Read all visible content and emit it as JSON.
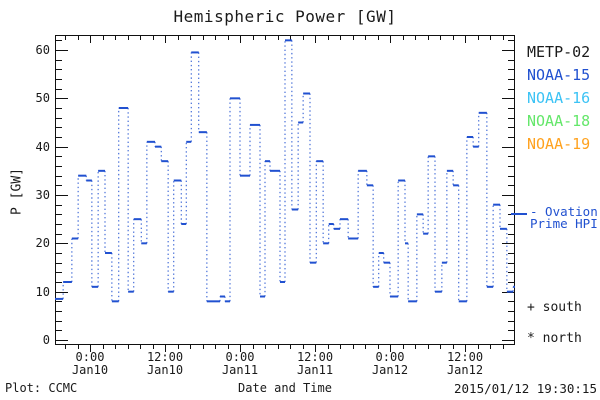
{
  "title": "Hemispheric Power [GW]",
  "legend": {
    "satellites": [
      {
        "label": "METP-02",
        "color": "#1a1a1a"
      },
      {
        "label": "NOAA-15",
        "color": "#2151d0"
      },
      {
        "label": "NOAA-16",
        "color": "#3cc3f5"
      },
      {
        "label": "NOAA-18",
        "color": "#64e76a"
      },
      {
        "label": "NOAA-19",
        "color": "#ffa21f"
      }
    ]
  },
  "ovation": {
    "line1": "- Ovation",
    "line2": "Prime HPI",
    "color": "#2151d0"
  },
  "annotations": {
    "south": "+ south",
    "north": "* north"
  },
  "footer": {
    "left": "Plot: CCMC",
    "center": "Date and Time",
    "right": "2015/01/12 19:30:15"
  },
  "chart_data": {
    "type": "line",
    "subtype": "step-line (solid horizontal passes, dotted vertical connectors)",
    "title": "Hemispheric Power [GW]",
    "xlabel": "Date and Time",
    "ylabel": "P [GW]",
    "ylim": [
      0,
      63
    ],
    "yticks": [
      0,
      10,
      20,
      30,
      40,
      50,
      60
    ],
    "y_minor_step": 2,
    "x_hours_range_rel_jan10_0000": [
      -5.6,
      68
    ],
    "x_minor_step_hours": 2,
    "xticks": [
      {
        "t": 0,
        "line1": "0:00",
        "line2": "Jan10"
      },
      {
        "t": 12,
        "line1": "12:00",
        "line2": "Jan10"
      },
      {
        "t": 24,
        "line1": "0:00",
        "line2": "Jan11"
      },
      {
        "t": 36,
        "line1": "12:00",
        "line2": "Jan11"
      },
      {
        "t": 48,
        "line1": "0:00",
        "line2": "Jan12"
      },
      {
        "t": 60,
        "line1": "12:00",
        "line2": "Jan12"
      }
    ],
    "grid": false,
    "legend_position": "right-outside",
    "series": [
      {
        "name": "Ovation Prime HPI",
        "color": "#2151d0",
        "steps_t_start_t_end_gw": [
          [
            -5.6,
            -4.3,
            8.5
          ],
          [
            -4.3,
            -2.9,
            12
          ],
          [
            -2.9,
            -1.9,
            21
          ],
          [
            -1.9,
            -0.6,
            34
          ],
          [
            -0.6,
            0.3,
            33
          ],
          [
            0.3,
            1.3,
            11
          ],
          [
            1.3,
            2.4,
            35
          ],
          [
            2.4,
            3.5,
            18
          ],
          [
            3.5,
            4.6,
            8
          ],
          [
            4.6,
            6.1,
            48
          ],
          [
            6.1,
            7.0,
            10
          ],
          [
            7.0,
            8.2,
            25
          ],
          [
            8.2,
            9.1,
            20
          ],
          [
            9.1,
            10.4,
            41
          ],
          [
            10.4,
            11.4,
            40
          ],
          [
            11.4,
            12.5,
            37
          ],
          [
            12.5,
            13.4,
            10
          ],
          [
            13.4,
            14.6,
            33
          ],
          [
            14.6,
            15.4,
            24
          ],
          [
            15.4,
            16.2,
            41
          ],
          [
            16.2,
            17.4,
            59.5
          ],
          [
            17.4,
            18.7,
            43
          ],
          [
            18.7,
            20.8,
            8
          ],
          [
            20.8,
            21.6,
            9
          ],
          [
            21.6,
            22.4,
            8
          ],
          [
            22.4,
            24,
            50
          ],
          [
            24,
            25.6,
            34
          ],
          [
            25.6,
            27.2,
            44.5
          ],
          [
            27.2,
            28,
            9
          ],
          [
            28,
            28.8,
            37
          ],
          [
            28.8,
            30.4,
            35
          ],
          [
            30.4,
            31.2,
            12
          ],
          [
            31.2,
            32.3,
            62
          ],
          [
            32.3,
            33.3,
            27
          ],
          [
            33.3,
            34.1,
            45
          ],
          [
            34.1,
            35.2,
            51
          ],
          [
            35.2,
            36.2,
            16
          ],
          [
            36.2,
            37.3,
            37
          ],
          [
            37.3,
            38.2,
            20
          ],
          [
            38.2,
            39,
            24
          ],
          [
            39,
            40,
            23
          ],
          [
            40,
            41.3,
            25
          ],
          [
            41.3,
            42.9,
            21
          ],
          [
            42.9,
            44.3,
            35
          ],
          [
            44.3,
            45.3,
            32
          ],
          [
            45.3,
            46.2,
            11
          ],
          [
            46.2,
            47,
            18
          ],
          [
            47,
            48,
            16
          ],
          [
            48,
            49.3,
            9
          ],
          [
            49.3,
            50.4,
            33
          ],
          [
            50.4,
            50.9,
            20
          ],
          [
            50.9,
            52.3,
            8
          ],
          [
            52.3,
            53.3,
            26
          ],
          [
            53.3,
            54.1,
            22
          ],
          [
            54.1,
            55.2,
            38
          ],
          [
            55.2,
            56.3,
            10
          ],
          [
            56.3,
            57.1,
            16
          ],
          [
            57.1,
            58.1,
            35
          ],
          [
            58.1,
            59,
            32
          ],
          [
            59,
            60.3,
            8
          ],
          [
            60.3,
            61.3,
            42
          ],
          [
            61.3,
            62.2,
            40
          ],
          [
            62.2,
            63.5,
            47
          ],
          [
            63.5,
            64.5,
            11
          ],
          [
            64.5,
            65.6,
            28
          ],
          [
            65.6,
            66.7,
            23
          ],
          [
            66.7,
            67.7,
            10
          ],
          [
            67.7,
            68,
            11
          ]
        ]
      }
    ]
  }
}
